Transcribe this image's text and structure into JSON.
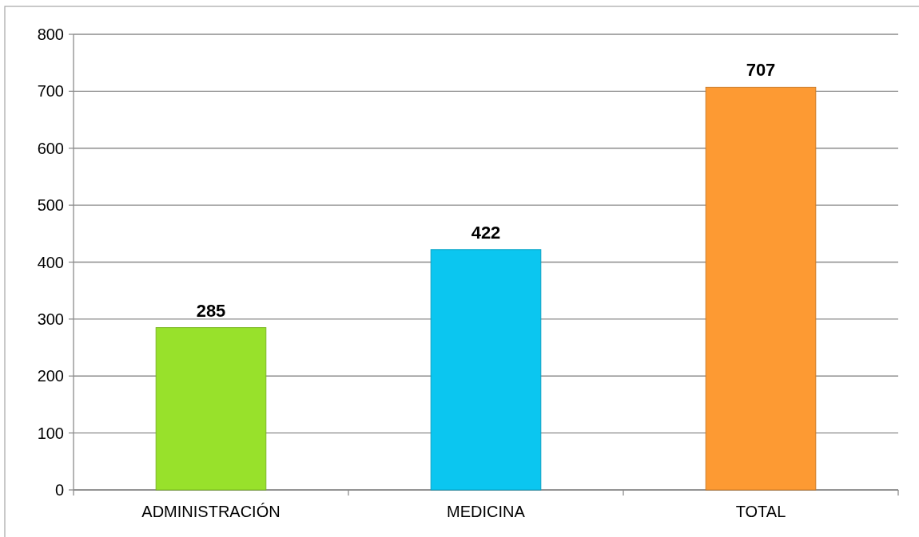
{
  "chart_data": {
    "type": "bar",
    "categories": [
      "ADMINISTRACIÓN",
      "MEDICINA",
      "TOTAL"
    ],
    "values": [
      285,
      422,
      707
    ],
    "colors": [
      "#98e12b",
      "#0bc6f0",
      "#fd9a33"
    ],
    "ylim": [
      0,
      800
    ],
    "yticks": [
      0,
      100,
      200,
      300,
      400,
      500,
      600,
      700,
      800
    ],
    "grid": "y",
    "data_labels": true
  }
}
